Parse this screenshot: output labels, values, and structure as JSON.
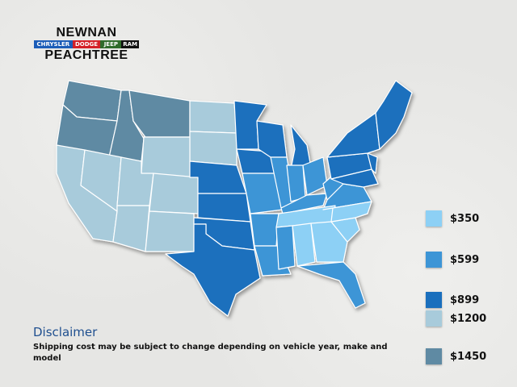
{
  "logo": {
    "line1": "NEWNAN",
    "brands": [
      {
        "label": "CHRYSLER",
        "color": "#1c5db8"
      },
      {
        "label": "DODGE",
        "color": "#d42027"
      },
      {
        "label": "JEEP",
        "color": "#2f6b2a"
      },
      {
        "label": "RAM",
        "color": "#111111"
      }
    ],
    "line3": "PEACHTREE"
  },
  "legend": [
    {
      "label": "$350",
      "color": "#8dd0f5"
    },
    {
      "label": "$599",
      "color": "#3d95d6"
    },
    {
      "label": "$899",
      "color": "#1a6fbd"
    },
    {
      "label": "$1200",
      "color": "#a8cbdb"
    },
    {
      "label": "$1450",
      "color": "#5f8aa3"
    }
  ],
  "disclaimer": {
    "title": "Disclaimer",
    "text": "Shipping cost may be subject to change depending on vehicle year, make and model"
  }
}
